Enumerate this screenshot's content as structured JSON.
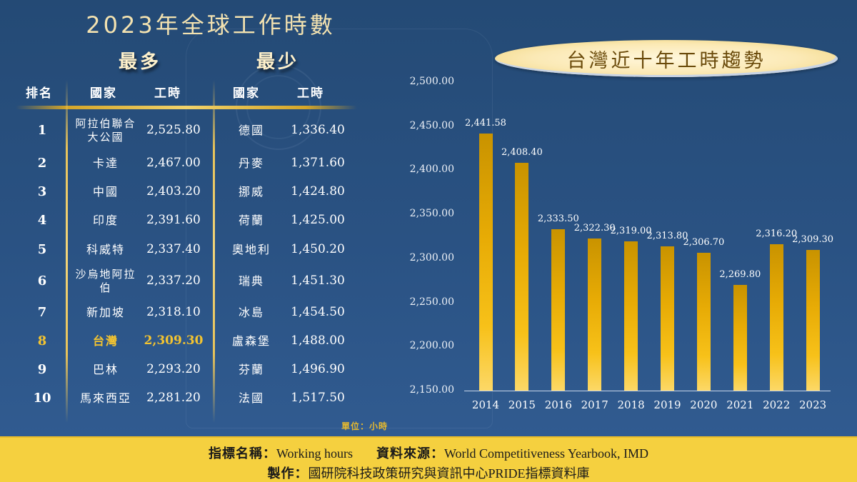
{
  "main_title": "2023年全球工作時數",
  "ranking": {
    "most_label": "最多",
    "least_label": "最少",
    "headers": {
      "rank": "排名",
      "country": "國家",
      "hours": "工時",
      "least_country": "國家",
      "least_hours": "工時"
    },
    "rows": [
      {
        "rank": "1",
        "most_country": "阿拉伯聯合大公國",
        "most_hours": "2,525.80",
        "least_country": "德國",
        "least_hours": "1,336.40",
        "highlight": false
      },
      {
        "rank": "2",
        "most_country": "卡達",
        "most_hours": "2,467.00",
        "least_country": "丹麥",
        "least_hours": "1,371.60",
        "highlight": false
      },
      {
        "rank": "3",
        "most_country": "中國",
        "most_hours": "2,403.20",
        "least_country": "挪威",
        "least_hours": "1,424.80",
        "highlight": false
      },
      {
        "rank": "4",
        "most_country": "印度",
        "most_hours": "2,391.60",
        "least_country": "荷蘭",
        "least_hours": "1,425.00",
        "highlight": false
      },
      {
        "rank": "5",
        "most_country": "科威特",
        "most_hours": "2,337.40",
        "least_country": "奧地利",
        "least_hours": "1,450.20",
        "highlight": false
      },
      {
        "rank": "6",
        "most_country": "沙烏地阿拉伯",
        "most_hours": "2,337.20",
        "least_country": "瑞典",
        "least_hours": "1,451.30",
        "highlight": false
      },
      {
        "rank": "7",
        "most_country": "新加坡",
        "most_hours": "2,318.10",
        "least_country": "冰島",
        "least_hours": "1,454.50",
        "highlight": false
      },
      {
        "rank": "8",
        "most_country": "台灣",
        "most_hours": "2,309.30",
        "least_country": "盧森堡",
        "least_hours": "1,488.00",
        "highlight": true
      },
      {
        "rank": "9",
        "most_country": "巴林",
        "most_hours": "2,293.20",
        "least_country": "芬蘭",
        "least_hours": "1,496.90",
        "highlight": false
      },
      {
        "rank": "10",
        "most_country": "馬來西亞",
        "most_hours": "2,281.20",
        "least_country": "法國",
        "least_hours": "1,517.50",
        "highlight": false
      }
    ],
    "unit_note": "單位：小時"
  },
  "colors": {
    "background": "#2a5283",
    "gold_accent": "#f4c430",
    "bar_top": "#c99300",
    "bar_bottom": "#fcd867",
    "footer_bg": "#f5d03f"
  },
  "chart_data": {
    "type": "bar",
    "title": "台灣近十年工時趨勢",
    "categories": [
      "2014",
      "2015",
      "2016",
      "2017",
      "2018",
      "2019",
      "2020",
      "2021",
      "2022",
      "2023"
    ],
    "values": [
      2441.58,
      2408.4,
      2333.5,
      2322.3,
      2319.0,
      2313.8,
      2306.7,
      2269.8,
      2316.2,
      2309.3
    ],
    "value_labels": [
      "2,441.58",
      "2,408.40",
      "2,333.50",
      "2,322.30",
      "2,319.00",
      "2,313.80",
      "2,306.70",
      "2,269.80",
      "2,316.20",
      "2,309.30"
    ],
    "xlabel": "",
    "ylabel": "",
    "ylim": [
      2150,
      2500
    ],
    "y_ticks": [
      "2,500.00",
      "2,450.00",
      "2,400.00",
      "2,350.00",
      "2,300.00",
      "2,250.00",
      "2,200.00",
      "2,150.00"
    ],
    "grid": false,
    "legend": "none",
    "data_labels": true
  },
  "footer": {
    "indicator_key": "指標名稱：",
    "indicator_value": "Working hours",
    "source_key": "資料來源：",
    "source_value": "World Competitiveness Yearbook, IMD",
    "producer_key": "製作：",
    "producer_value": "國研院科技政策研究與資訊中心PRIDE指標資料庫"
  }
}
